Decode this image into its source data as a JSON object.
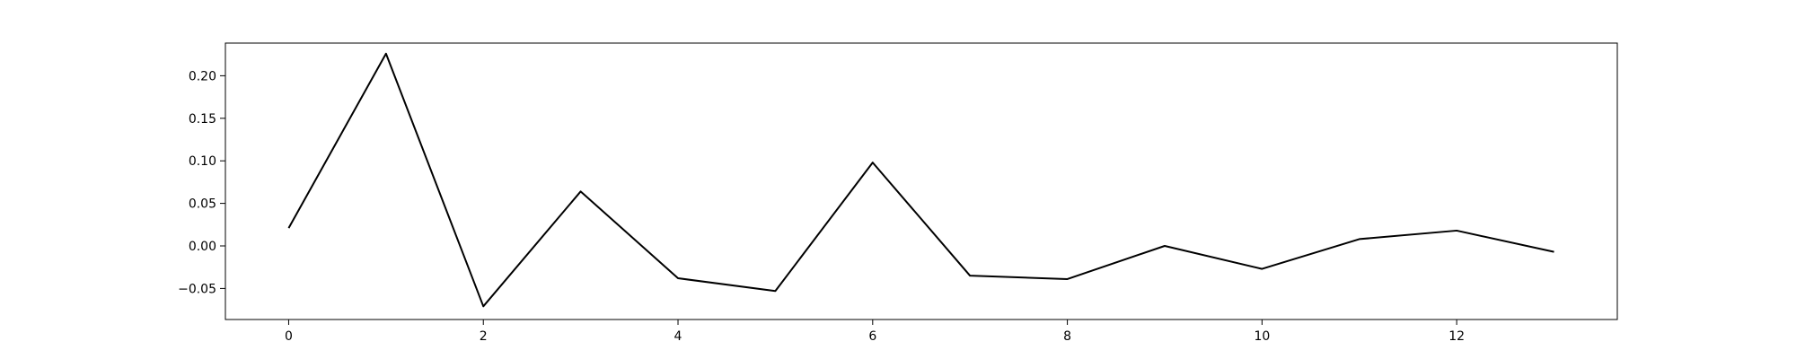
{
  "chart_data": {
    "type": "line",
    "title": "",
    "xlabel": "",
    "ylabel": "",
    "grid": false,
    "legend": "none",
    "xlim": [
      -0.65,
      13.65
    ],
    "ylim": [
      -0.0865,
      0.2384
    ],
    "x_ticks": [
      0,
      2,
      4,
      6,
      8,
      10,
      12
    ],
    "x_tick_labels": [
      "0",
      "2",
      "4",
      "6",
      "8",
      "10",
      "12"
    ],
    "y_ticks": [
      -0.05,
      0.0,
      0.05,
      0.1,
      0.15,
      0.2
    ],
    "y_tick_labels": [
      "−0.05",
      "0.00",
      "0.05",
      "0.10",
      "0.15",
      "0.20"
    ],
    "series": [
      {
        "color": "#000000",
        "x": [
          0,
          1,
          2,
          3,
          4,
          5,
          6,
          7,
          8,
          9,
          10,
          11,
          12,
          13
        ],
        "y": [
          0.021,
          0.226,
          -0.071,
          0.064,
          -0.038,
          -0.053,
          0.098,
          -0.035,
          -0.039,
          0.0,
          -0.027,
          0.008,
          0.018,
          -0.007
        ]
      }
    ]
  }
}
